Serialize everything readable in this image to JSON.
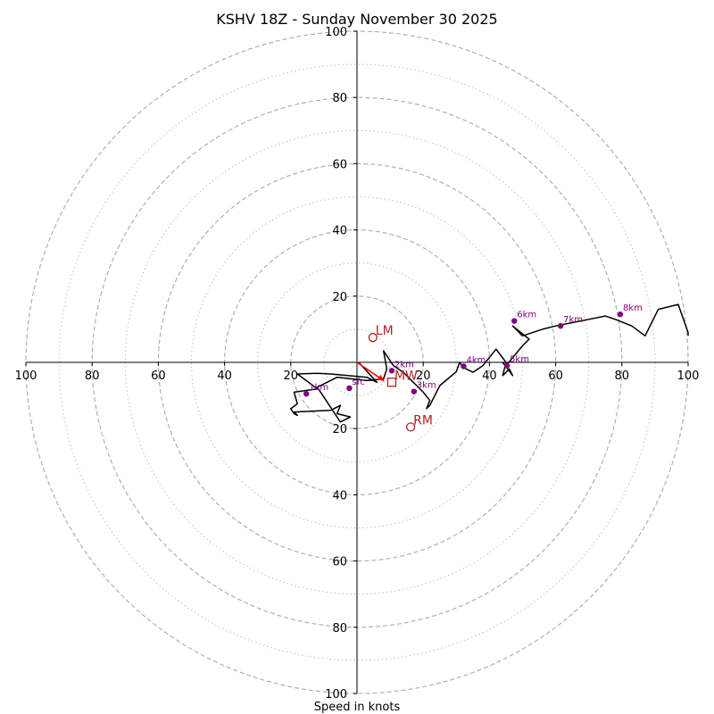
{
  "chart_data": {
    "type": "hodograph",
    "title": "KSHV 18Z - Sunday November 30 2025",
    "xlabel": "Speed in knots",
    "units": "knots",
    "xlim": [
      -100,
      100
    ],
    "ylim": [
      -100,
      100
    ],
    "ring_major": [
      20,
      40,
      60,
      80,
      100
    ],
    "ring_minor": [
      10,
      30,
      50,
      70,
      90
    ],
    "x_tick_values": [
      -100,
      -80,
      -60,
      -40,
      -20,
      20,
      40,
      60,
      80,
      100
    ],
    "x_tick_labels": [
      "100",
      "80",
      "60",
      "40",
      "20",
      "20",
      "40",
      "60",
      "80",
      "100"
    ],
    "y_tick_values": [
      100,
      80,
      60,
      40,
      20,
      -20,
      -40,
      -60,
      -80,
      -100
    ],
    "y_tick_labels": [
      "100",
      "80",
      "60",
      "40",
      "20",
      "20",
      "40",
      "60",
      "80",
      "100"
    ],
    "colors": {
      "trace": "#000000",
      "height_points": "#800080",
      "storm_motion": "#b22222",
      "shear_vector": "#ff0000",
      "rings": "#b0b0b0",
      "axes": "#000000"
    },
    "trace": {
      "u": [
        0.5,
        6,
        3,
        -8,
        -12,
        -18,
        -12,
        -19,
        -18,
        -20,
        -19,
        -18,
        -19,
        -8,
        -5,
        -6,
        -2,
        -5,
        -12,
        -9,
        -6,
        3,
        8,
        9,
        8,
        11,
        14,
        17,
        20,
        22,
        21,
        22,
        25,
        30,
        31,
        32,
        35,
        38,
        42,
        45,
        44,
        46,
        47,
        44,
        45,
        50,
        52,
        47,
        50,
        56,
        60,
        65,
        70,
        75,
        78,
        83,
        87,
        91,
        97,
        100,
        100
      ],
      "v": [
        0,
        -6,
        -4.5,
        -3.5,
        -3.3,
        -3.5,
        -8,
        -9,
        -12.5,
        -14,
        -15.5,
        -16,
        -15,
        -14.5,
        -13,
        -15.5,
        -16.5,
        -18,
        -7.5,
        -6,
        -4.5,
        -5.5,
        -5,
        -2,
        3.5,
        -1,
        -3,
        -6,
        -9,
        -11.5,
        -14,
        -13,
        -7,
        -2.8,
        0,
        -1.5,
        -3,
        -1,
        4,
        0,
        -4,
        -2,
        -4,
        0,
        -1,
        5,
        7,
        11,
        8,
        10,
        11,
        12,
        13,
        14,
        13,
        11,
        8,
        16,
        17.5,
        9,
        8
      ]
    },
    "height_points": [
      {
        "label": "1km",
        "u": -15.3,
        "v": -9.5
      },
      {
        "label": "sfc",
        "u": -2.3,
        "v": -7.8
      },
      {
        "label": "2km",
        "u": 10.5,
        "v": -2.5
      },
      {
        "label": "3km",
        "u": 17.2,
        "v": -8.8
      },
      {
        "label": "4km",
        "u": 32.2,
        "v": -1.2
      },
      {
        "label": "5km",
        "u": 45.3,
        "v": -1.0
      },
      {
        "label": "6km",
        "u": 47.5,
        "v": 12.5
      },
      {
        "label": "7km",
        "u": 61.5,
        "v": 11.0
      },
      {
        "label": "8km",
        "u": 79.5,
        "v": 14.5
      }
    ],
    "storm_motion": [
      {
        "label": "LM",
        "u": 4.8,
        "v": 7.5,
        "shape": "circle"
      },
      {
        "label": "RM",
        "u": 16.2,
        "v": -19.5,
        "shape": "circle"
      },
      {
        "label": "MW",
        "u": 10.5,
        "v": -6.0,
        "shape": "square"
      }
    ],
    "shear_vector": {
      "u0": 0,
      "v0": 0,
      "u1": 8.2,
      "v1": -5.6
    }
  }
}
